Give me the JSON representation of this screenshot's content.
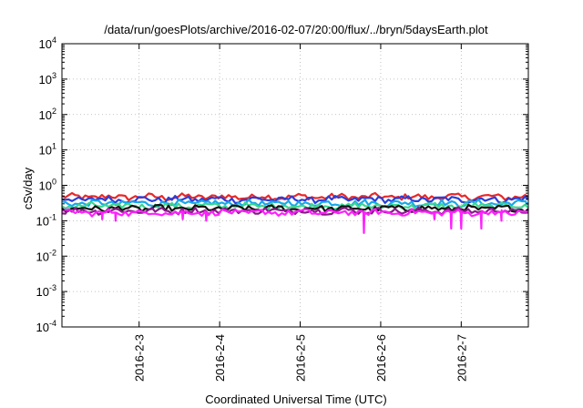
{
  "chart_data": {
    "type": "line",
    "title": "/data/run/goesPlots/archive/2016-02-07/20:00/flux/../bryn/5daysEarth.plot",
    "xlabel": "Coordinated Universal Time (UTC)",
    "ylabel": "cSv/day",
    "yscale": "log",
    "ylim": [
      0.0001,
      10000
    ],
    "xlim": [
      "2016-02-02 01:00",
      "2016-02-07 20:00"
    ],
    "grid": true,
    "legend": "none",
    "y_ticks": [
      {
        "value": 0.0001,
        "base": "10",
        "exp": "-4"
      },
      {
        "value": 0.001,
        "base": "10",
        "exp": "-3"
      },
      {
        "value": 0.01,
        "base": "10",
        "exp": "-2"
      },
      {
        "value": 0.1,
        "base": "10",
        "exp": "-1"
      },
      {
        "value": 1,
        "base": "10",
        "exp": "0"
      },
      {
        "value": 10,
        "base": "10",
        "exp": "1"
      },
      {
        "value": 100,
        "base": "10",
        "exp": "2"
      },
      {
        "value": 1000,
        "base": "10",
        "exp": "3"
      },
      {
        "value": 10000,
        "base": "10",
        "exp": "4"
      }
    ],
    "x_ticks": [
      {
        "value": "2016-02-03",
        "label": "2016-2-3"
      },
      {
        "value": "2016-02-04",
        "label": "2016-2-4"
      },
      {
        "value": "2016-02-05",
        "label": "2016-2-5"
      },
      {
        "value": "2016-02-06",
        "label": "2016-2-6"
      },
      {
        "value": "2016-02-07",
        "label": "2016-2-7"
      }
    ],
    "series": [
      {
        "color": "#e8282a",
        "level": 0.47,
        "dips": []
      },
      {
        "color": "#2a3fd8",
        "level": 0.4,
        "dips": []
      },
      {
        "color": "#17a9e8",
        "level": 0.31,
        "dips": []
      },
      {
        "color": "#3cd68f",
        "level": 0.26,
        "dips": []
      },
      {
        "color": "#111111",
        "level": 0.22,
        "dips": []
      },
      {
        "color": "#8a1a8a",
        "level": 0.19,
        "dips": []
      },
      {
        "color": "#ff20ff",
        "level": 0.17,
        "dips": [
          {
            "x": "2016-02-02 13:00",
            "y": 0.11
          },
          {
            "x": "2016-02-02 17:00",
            "y": 0.1
          },
          {
            "x": "2016-02-03 13:00",
            "y": 0.11
          },
          {
            "x": "2016-02-03 20:00",
            "y": 0.1
          },
          {
            "x": "2016-02-05 19:00",
            "y": 0.045
          },
          {
            "x": "2016-02-06 16:00",
            "y": 0.11
          },
          {
            "x": "2016-02-06 21:00",
            "y": 0.06
          },
          {
            "x": "2016-02-07 00:00",
            "y": 0.06
          },
          {
            "x": "2016-02-07 06:00",
            "y": 0.06
          },
          {
            "x": "2016-02-07 12:00",
            "y": 0.1
          }
        ]
      }
    ]
  }
}
